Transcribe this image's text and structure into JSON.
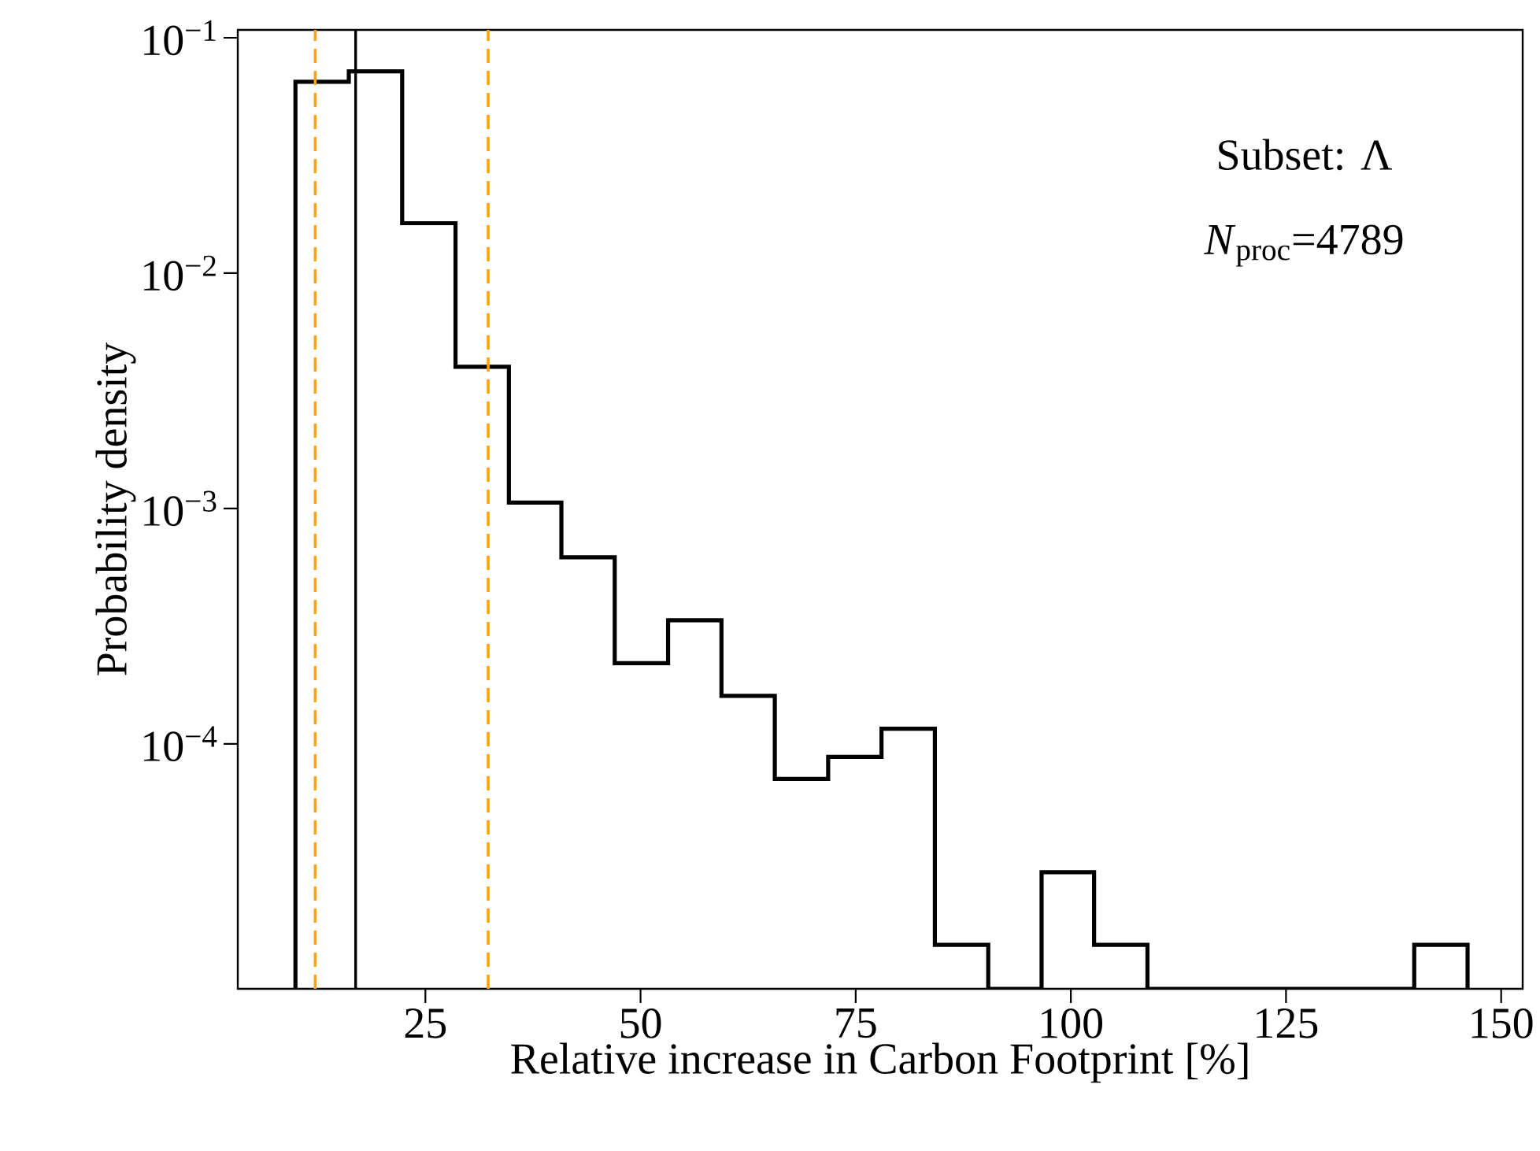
{
  "chart_data": {
    "type": "histogram",
    "xlabel": "Relative increase in Carbon Footprint [%]",
    "ylabel": "Probability density",
    "bins": [
      9.9,
      16.1,
      22.3,
      28.5,
      34.7,
      40.8,
      47.0,
      53.2,
      59.4,
      65.6,
      71.8,
      78.0,
      84.2,
      90.4,
      96.6,
      102.7,
      108.9,
      115.1,
      121.3,
      127.5,
      133.7,
      139.9,
      146.1
    ],
    "values": [
      0.065,
      0.072,
      0.0163,
      0.004,
      0.00106,
      0.00062,
      0.00022,
      0.000335,
      0.00016,
      7.1e-05,
      8.8e-05,
      0.000116,
      1.4e-05,
      null,
      2.85e-05,
      1.4e-05,
      null,
      null,
      null,
      null,
      null,
      1.4e-05
    ],
    "color": "#000000",
    "log": "y",
    "xlim": [
      3.2,
      152.5
    ],
    "ylim": [
      9.1e-06,
      0.108
    ],
    "xticks": [
      25,
      50,
      75,
      100,
      125,
      150
    ],
    "yticks": [
      {
        "value": 0.1,
        "label": "10$^{−1}$"
      },
      {
        "value": 0.01,
        "label": "10$^{−2}$"
      },
      {
        "value": 0.001,
        "label": "10$^{−3}$"
      },
      {
        "value": 0.0001,
        "label": "10$^{−4}$"
      }
    ],
    "ref_lines": [
      {
        "axis": "x",
        "value": 12.2,
        "color": "#ffa500",
        "line_style": "dashed"
      },
      {
        "axis": "x",
        "value": 16.9,
        "color": "#000000",
        "line_style": "solid"
      },
      {
        "axis": "x",
        "value": 32.3,
        "color": "#ffa500",
        "line_style": "dashed"
      }
    ],
    "annotations": [
      "Subset: Λ",
      "*N*$_{proc}$=4789"
    ]
  }
}
